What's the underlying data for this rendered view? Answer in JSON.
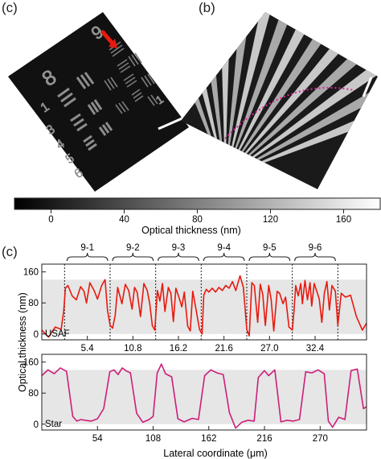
{
  "panel_labels": {
    "top_left": "(c)",
    "top_right": "(b)",
    "bottom": "(c)"
  },
  "colorbar": {
    "label": "Optical thickness (nm)",
    "ticks": [
      "0",
      "40",
      "80",
      "120",
      "160"
    ],
    "min": -20,
    "max": 180
  },
  "chart_data": [
    {
      "type": "line",
      "name_label": "USAF",
      "color": "#e8190f",
      "xticks": [
        5.4,
        10.8,
        16.2,
        21.6,
        27.0,
        32.4
      ],
      "xtick_labels": [
        "5.4",
        "10.8",
        "16.2",
        "21.6",
        "27.0",
        "32.4"
      ],
      "yticks": [
        0,
        80,
        160
      ],
      "ylim": [
        -15,
        180
      ],
      "xlim": [
        0,
        38.5
      ],
      "band": [
        0,
        140
      ],
      "dashed_x": [
        2.7,
        8.1,
        13.5,
        18.9,
        24.3,
        29.7,
        35.1
      ],
      "groups": [
        {
          "label": "9-1",
          "from": 2.7,
          "to": 8.1
        },
        {
          "label": "9-2",
          "from": 8.1,
          "to": 13.5
        },
        {
          "label": "9-3",
          "from": 13.5,
          "to": 18.9
        },
        {
          "label": "9-4",
          "from": 18.9,
          "to": 24.3
        },
        {
          "label": "9-5",
          "from": 24.3,
          "to": 29.7
        },
        {
          "label": "9-6",
          "from": 29.7,
          "to": 35.1
        }
      ],
      "x": [
        0,
        0.8,
        1.6,
        2.3,
        2.6,
        2.8,
        3.1,
        3.6,
        4.1,
        4.6,
        5.0,
        5.3,
        5.7,
        6.2,
        6.6,
        7.1,
        7.5,
        7.8,
        8.1,
        8.4,
        8.7,
        9.0,
        9.5,
        9.9,
        10.3,
        10.7,
        11.0,
        11.3,
        11.7,
        12.1,
        12.5,
        12.8,
        13.1,
        13.4,
        13.7,
        14.0,
        14.3,
        14.6,
        15.0,
        15.3,
        15.6,
        15.9,
        16.3,
        16.6,
        16.9,
        17.3,
        17.6,
        17.9,
        18.3,
        18.7,
        19.0,
        19.2,
        19.5,
        19.8,
        20.2,
        20.6,
        21.0,
        21.4,
        21.8,
        22.2,
        22.6,
        23.0,
        23.5,
        23.9,
        24.3,
        24.6,
        24.9,
        25.2,
        25.6,
        25.9,
        26.2,
        26.5,
        26.9,
        27.2,
        27.5,
        27.9,
        28.2,
        28.6,
        28.9,
        29.3,
        29.7,
        29.9,
        30.1,
        30.4,
        30.7,
        30.9,
        31.2,
        31.5,
        31.8,
        32.0,
        32.3,
        32.6,
        32.9,
        33.2,
        33.5,
        33.8,
        34.1,
        34.4,
        34.8,
        35.1,
        35.5,
        36.0,
        36.6,
        37.3,
        38.0,
        38.5
      ],
      "y": [
        10,
        -8,
        18,
        12,
        60,
        118,
        125,
        98,
        88,
        122,
        110,
        80,
        132,
        112,
        90,
        125,
        140,
        60,
        22,
        15,
        48,
        120,
        78,
        128,
        112,
        64,
        120,
        108,
        45,
        130,
        112,
        78,
        22,
        10,
        112,
        85,
        130,
        58,
        120,
        105,
        32,
        118,
        92,
        70,
        108,
        20,
        8,
        110,
        62,
        12,
        0,
        100,
        115,
        108,
        118,
        108,
        120,
        112,
        125,
        118,
        135,
        112,
        150,
        120,
        12,
        -5,
        132,
        125,
        30,
        128,
        102,
        22,
        125,
        88,
        8,
        110,
        105,
        78,
        95,
        18,
        10,
        60,
        125,
        98,
        130,
        78,
        138,
        88,
        132,
        72,
        130,
        110,
        90,
        30,
        105,
        135,
        62,
        125,
        110,
        22,
        105,
        95,
        100,
        45,
        10,
        28
      ]
    },
    {
      "type": "line",
      "name_label": "Star",
      "color": "#cc1e7a",
      "xticks": [
        54,
        108,
        162,
        216,
        270
      ],
      "xtick_labels": [
        "54",
        "108",
        "162",
        "216",
        "270"
      ],
      "yticks": [
        0,
        80,
        160
      ],
      "ylim": [
        -15,
        180
      ],
      "xlim": [
        0,
        315
      ],
      "band": [
        0,
        140
      ],
      "xlabel": "Lateral coordinate (μm)",
      "ylabel": "Optical thickness (nm)",
      "x": [
        0,
        6,
        12,
        18,
        24,
        30,
        34,
        38,
        42,
        48,
        54,
        60,
        66,
        70,
        74,
        78,
        82,
        86,
        92,
        98,
        104,
        108,
        112,
        116,
        120,
        126,
        132,
        138,
        146,
        152,
        158,
        164,
        170,
        176,
        182,
        188,
        194,
        200,
        206,
        210,
        216,
        220,
        226,
        232,
        238,
        244,
        250,
        256,
        262,
        268,
        274,
        278,
        282,
        288,
        294,
        300,
        306,
        312,
        315
      ],
      "y": [
        125,
        140,
        130,
        145,
        136,
        20,
        8,
        12,
        10,
        8,
        14,
        40,
        135,
        140,
        128,
        145,
        137,
        132,
        28,
        5,
        12,
        20,
        132,
        155,
        130,
        122,
        14,
        6,
        15,
        12,
        125,
        140,
        132,
        128,
        30,
        -10,
        5,
        10,
        8,
        120,
        138,
        125,
        140,
        6,
        10,
        8,
        12,
        135,
        132,
        140,
        130,
        8,
        -8,
        18,
        12,
        138,
        142,
        40,
        45
      ]
    }
  ]
}
